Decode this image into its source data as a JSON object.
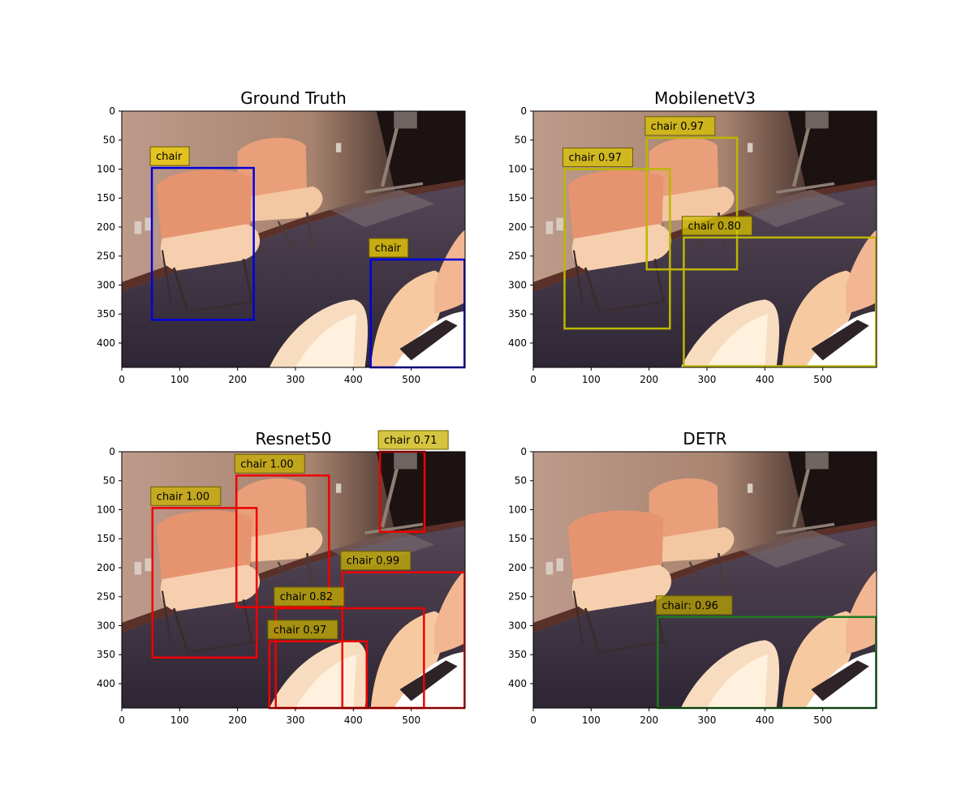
{
  "figure": {
    "panels": [
      {
        "id": "gt",
        "title": "Ground Truth",
        "box_color": "#0000dd",
        "label_bg": "#f2d200",
        "detections": [
          {
            "label": "chair",
            "x1": 52,
            "y1": 98,
            "x2": 228,
            "y2": 360
          },
          {
            "label": "chair",
            "x1": 430,
            "y1": 256,
            "x2": 592,
            "y2": 442
          }
        ]
      },
      {
        "id": "mobilenet",
        "title": "MobilenetV3",
        "box_color": "#bdb700",
        "label_bg": "#d9c400",
        "detections": [
          {
            "label": "chair 0.97",
            "x1": 196,
            "y1": 46,
            "x2": 352,
            "y2": 273
          },
          {
            "label": "chair 0.97",
            "x1": 54,
            "y1": 100,
            "x2": 236,
            "y2": 375
          },
          {
            "label": "chair 0.80",
            "x1": 260,
            "y1": 218,
            "x2": 592,
            "y2": 440
          }
        ]
      },
      {
        "id": "resnet",
        "title": "Resnet50",
        "box_color": "#ee0000",
        "label_bg": "#c8b000",
        "detections": [
          {
            "label": "chair 1.00",
            "x1": 198,
            "y1": 41,
            "x2": 358,
            "y2": 268
          },
          {
            "label": "chair 0.71",
            "x1": 446,
            "y1": 0,
            "x2": 523,
            "y2": 138
          },
          {
            "label": "chair 1.00",
            "x1": 53,
            "y1": 97,
            "x2": 233,
            "y2": 355
          },
          {
            "label": "chair 0.99",
            "x1": 381,
            "y1": 208,
            "x2": 592,
            "y2": 442
          },
          {
            "label": "chair 0.82",
            "x1": 266,
            "y1": 270,
            "x2": 522,
            "y2": 442
          },
          {
            "label": "chair 0.97",
            "x1": 255,
            "y1": 327,
            "x2": 423,
            "y2": 442
          }
        ]
      },
      {
        "id": "detr",
        "title": "DETR",
        "box_color": "#207a20",
        "label_bg": "#b8a400",
        "detections": [
          {
            "label": "chair: 0.96",
            "x1": 215,
            "y1": 285,
            "x2": 592,
            "y2": 442
          }
        ]
      }
    ],
    "xticks": [
      "0",
      "100",
      "200",
      "300",
      "400",
      "500"
    ],
    "yticks": [
      "0",
      "50",
      "100",
      "150",
      "200",
      "250",
      "300",
      "350",
      "400"
    ],
    "image_width": 593,
    "image_height": 442
  }
}
